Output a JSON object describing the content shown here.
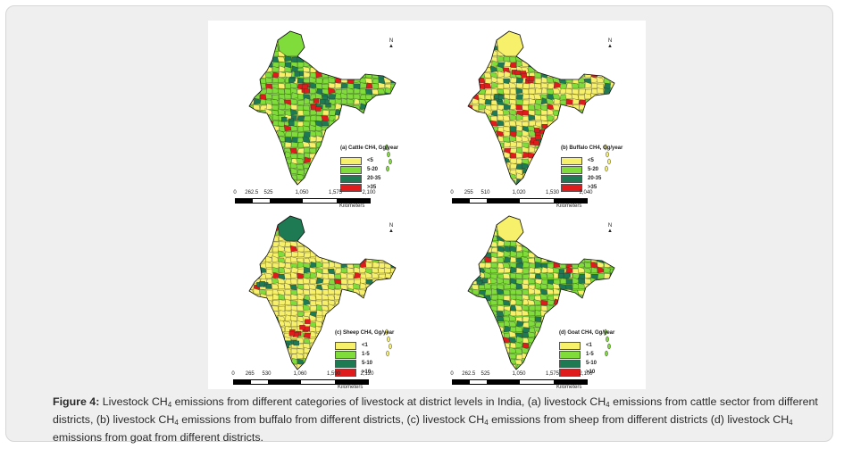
{
  "colors": {
    "low": "#f7f06a",
    "mid": "#7fdc3a",
    "high": "#1d7a52",
    "top": "#e01b1b",
    "border": "#2b2b2b"
  },
  "panels": [
    {
      "id": "a",
      "legend_title": "(a) Cattle CH4, Gg/year",
      "legend": [
        "<5",
        "5-20",
        "20-35",
        ">35"
      ],
      "scale_ticks": [
        "0",
        "262.5",
        "525",
        "1,050",
        "1,575",
        "2,100"
      ],
      "scale_unit": "Kilometers",
      "north": "N",
      "dominant_class": "5-20",
      "hotspots": "north Indo-Gangetic plain and central India"
    },
    {
      "id": "b",
      "legend_title": "(b) Buffalo CH4, Gg/year",
      "legend": [
        "<5",
        "5-20",
        "20-35",
        ">35"
      ],
      "scale_ticks": [
        "0",
        "255",
        "510",
        "1,020",
        "1,530",
        "2,040"
      ],
      "scale_unit": "Kilometers",
      "north": "N",
      "dominant_class": "<5",
      "hotspots": "north Indo-Gangetic plain and east coast"
    },
    {
      "id": "c",
      "legend_title": "(c) Sheep CH4, Gg/year",
      "legend": [
        "<1",
        "1-5",
        "5-10",
        ">10"
      ],
      "scale_ticks": [
        "0",
        "265",
        "530",
        "1,060",
        "1,590",
        "2,120"
      ],
      "scale_unit": "Kilometers",
      "north": "N",
      "dominant_class": "<1",
      "hotspots": "Deccan (south-central India)"
    },
    {
      "id": "d",
      "legend_title": "(d) Goat CH4, Gg/year",
      "legend": [
        "<1",
        "1-5",
        "5-10",
        ">10"
      ],
      "scale_ticks": [
        "0",
        "262.5",
        "525",
        "1,050",
        "1,575",
        "2,100"
      ],
      "scale_unit": "Kilometers",
      "north": "N",
      "dominant_class": "1-5",
      "hotspots": "none"
    }
  ],
  "caption": {
    "label": "Figure 4:",
    "parts": [
      " Livestock CH",
      " emissions from different categories of livestock at district levels in India, (a) livestock CH",
      " emissions from cattle sector from different districts, (b) livestock CH",
      " emissions from buffalo from different districts, (c) livestock CH",
      " emissions from sheep from different districts (d) livestock CH",
      " emissions from goat from different districts."
    ],
    "subscript": "4"
  }
}
